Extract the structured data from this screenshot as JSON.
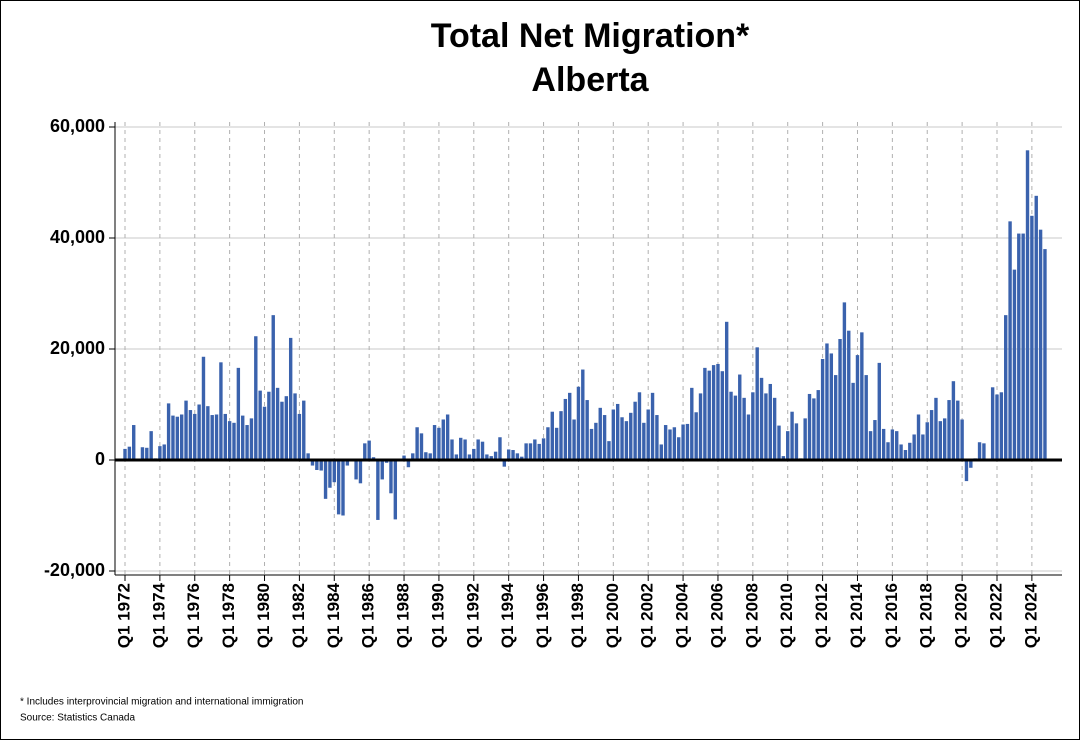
{
  "chart_data": {
    "type": "bar",
    "title": "Total Net Migration*",
    "subtitle": "Alberta",
    "categories": [
      "Q1 1972",
      null,
      null,
      null,
      null,
      null,
      null,
      null,
      "Q1 1974",
      null,
      null,
      null,
      null,
      null,
      null,
      null,
      "Q1 1976",
      null,
      null,
      null,
      null,
      null,
      null,
      null,
      "Q1 1978",
      null,
      null,
      null,
      null,
      null,
      null,
      null,
      "Q1 1980",
      null,
      null,
      null,
      null,
      null,
      null,
      null,
      "Q1 1982",
      null,
      null,
      null,
      null,
      null,
      null,
      null,
      "Q1 1984",
      null,
      null,
      null,
      null,
      null,
      null,
      null,
      "Q1 1986",
      null,
      null,
      null,
      null,
      null,
      null,
      null,
      "Q1 1988",
      null,
      null,
      null,
      null,
      null,
      null,
      null,
      "Q1 1990",
      null,
      null,
      null,
      null,
      null,
      null,
      null,
      "Q1 1992",
      null,
      null,
      null,
      null,
      null,
      null,
      null,
      "Q1 1994",
      null,
      null,
      null,
      null,
      null,
      null,
      null,
      "Q1 1996",
      null,
      null,
      null,
      null,
      null,
      null,
      null,
      "Q1 1998",
      null,
      null,
      null,
      null,
      null,
      null,
      null,
      "Q1 2000",
      null,
      null,
      null,
      null,
      null,
      null,
      null,
      "Q1 2002",
      null,
      null,
      null,
      null,
      null,
      null,
      null,
      "Q1 2004",
      null,
      null,
      null,
      null,
      null,
      null,
      null,
      "Q1 2006",
      null,
      null,
      null,
      null,
      null,
      null,
      null,
      "Q1 2008",
      null,
      null,
      null,
      null,
      null,
      null,
      null,
      "Q1 2010",
      null,
      null,
      null,
      null,
      null,
      null,
      null,
      "Q1 2012",
      null,
      null,
      null,
      null,
      null,
      null,
      null,
      "Q1 2014",
      null,
      null,
      null,
      null,
      null,
      null,
      null,
      "Q1 2016",
      null,
      null,
      null,
      null,
      null,
      null,
      null,
      "Q1 2018",
      null,
      null,
      null,
      null,
      null,
      null,
      null,
      "Q1 2020",
      null,
      null,
      null,
      null,
      null,
      null,
      null,
      "Q1 2022",
      null,
      null,
      null,
      null,
      null,
      null,
      null,
      "Q1 2024",
      null,
      null,
      null
    ],
    "values": [
      2000,
      2400,
      6300,
      200,
      2300,
      2200,
      5200,
      300,
      2500,
      2800,
      10200,
      8000,
      7800,
      8200,
      10700,
      9000,
      8300,
      10000,
      18600,
      9700,
      8100,
      8200,
      17600,
      8300,
      7000,
      6700,
      16600,
      8000,
      6300,
      7500,
      22300,
      12500,
      9600,
      12300,
      26100,
      13000,
      10500,
      11500,
      22000,
      12000,
      8300,
      10700,
      1200,
      -1000,
      -1800,
      -1900,
      -7000,
      -5000,
      -4000,
      -9800,
      -10000,
      -1000,
      0,
      -3500,
      -4200,
      3000,
      3500,
      500,
      -10800,
      -3500,
      -500,
      -6000,
      -10700,
      0,
      800,
      -1300,
      1200,
      5900,
      4800,
      1400,
      1200,
      6300,
      5800,
      7300,
      8200,
      3700,
      1000,
      4000,
      3700,
      1000,
      2000,
      3700,
      3300,
      1000,
      700,
      1500,
      4100,
      -1200,
      1900,
      1800,
      1200,
      600,
      3000,
      3000,
      3700,
      2900,
      3900,
      5900,
      8700,
      5800,
      8800,
      11000,
      12100,
      7300,
      13200,
      16300,
      10800,
      5600,
      6700,
      9400,
      8100,
      3400,
      9100,
      10100,
      7700,
      7000,
      8500,
      10500,
      12200,
      6700,
      9100,
      12100,
      8100,
      2800,
      6300,
      5500,
      5900,
      4100,
      6400,
      6500,
      13000,
      8600,
      12000,
      16600,
      16100,
      17100,
      17300,
      16000,
      24900,
      12300,
      11600,
      15400,
      11200,
      8200,
      12200,
      20300,
      14800,
      12000,
      13700,
      11200,
      6200,
      700,
      5200,
      8700,
      6600,
      300,
      7500,
      11900,
      11100,
      12600,
      18200,
      21000,
      19200,
      15300,
      21800,
      28400,
      23300,
      13900,
      18900,
      23000,
      15300,
      5200,
      7200,
      17500,
      5600,
      3200,
      5500,
      5200,
      2800,
      1800,
      3100,
      4600,
      8200,
      4600,
      6800,
      9000,
      11200,
      7000,
      7500,
      10800,
      14200,
      10700,
      7300,
      -3800,
      -1400,
      300,
      3200,
      3000,
      0,
      13100,
      11800,
      12200,
      26100,
      43000,
      34300,
      40800,
      40800,
      55800,
      44000,
      47600,
      41500,
      38000
    ],
    "color": "#3a62ad",
    "ylim": [
      -20000,
      60000
    ],
    "yticks": [
      {
        "value": -20000,
        "label": "-20,000"
      },
      0,
      {
        "value": 20000,
        "label": "20,000"
      },
      {
        "value": 40000,
        "label": "40,000"
      },
      {
        "value": 60000,
        "label": "60,000"
      }
    ],
    "grid": true,
    "footnotes": [
      "* Includes interprovincial migration and international immigration",
      "Source: Statistics Canada"
    ]
  }
}
